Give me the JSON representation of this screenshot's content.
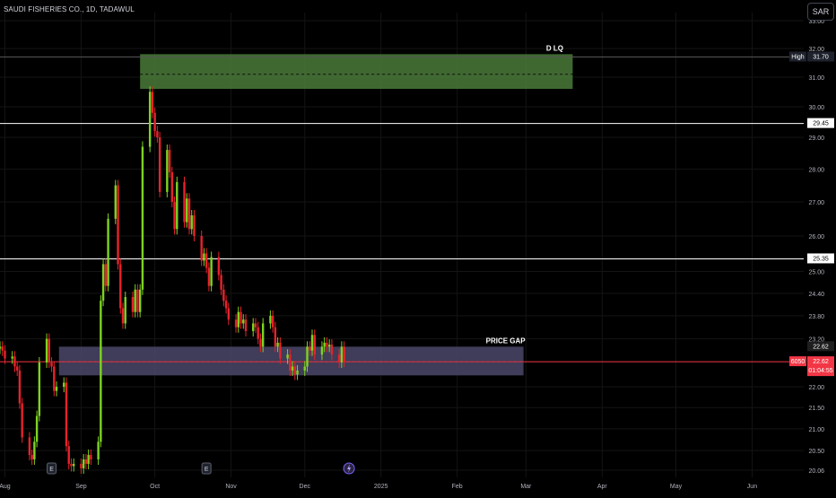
{
  "header": {
    "symbol_title": "SAUDI FISHERIES CO., 1D, TADAWUL",
    "currency": "SAR"
  },
  "colors": {
    "background": "#000000",
    "up": "#7ed321",
    "down": "#e8222b",
    "grid": "#141414",
    "axis_text": "#b2b5be",
    "price_line": "#f23645",
    "level_line": "#ffffff"
  },
  "chart_data": {
    "type": "candlestick",
    "symbol": "SAUDI FISHERIES CO.",
    "interval": "1D",
    "exchange": "TADAWUL",
    "y_axis": {
      "scale": "log",
      "range": [
        19.9,
        33.3
      ],
      "ticks": [
        "33.00",
        "32.00",
        "31.00",
        "30.00",
        "29.00",
        "28.00",
        "27.00",
        "26.00",
        "25.00",
        "24.40",
        "23.80",
        "23.20",
        "22.00",
        "21.50",
        "21.00",
        "20.50",
        "20.06"
      ]
    },
    "x_axis": {
      "range": [
        "2024-07-30",
        "2025-06-22"
      ],
      "ticks": [
        {
          "label": "Aug",
          "date": "2024-08-01"
        },
        {
          "label": "Sep",
          "date": "2024-09-01"
        },
        {
          "label": "Oct",
          "date": "2024-10-01"
        },
        {
          "label": "Nov",
          "date": "2024-11-01"
        },
        {
          "label": "Dec",
          "date": "2024-12-01"
        },
        {
          "label": "2025",
          "date": "2025-01-01"
        },
        {
          "label": "Feb",
          "date": "2025-02-01"
        },
        {
          "label": "Mar",
          "date": "2025-03-01"
        },
        {
          "label": "Apr",
          "date": "2025-04-01"
        },
        {
          "label": "May",
          "date": "2025-05-01"
        },
        {
          "label": "Jun",
          "date": "2025-06-01"
        }
      ]
    },
    "close_series": [
      [
        "2024-07-30",
        23.0
      ],
      [
        "2024-07-31",
        22.9
      ],
      [
        "2024-08-01",
        22.7
      ],
      [
        "2024-08-04",
        22.75
      ],
      [
        "2024-08-05",
        22.5
      ],
      [
        "2024-08-06",
        22.4
      ],
      [
        "2024-08-07",
        21.6
      ],
      [
        "2024-08-08",
        20.8
      ],
      [
        "2024-08-11",
        20.4
      ],
      [
        "2024-08-12",
        20.3
      ],
      [
        "2024-08-13",
        20.7
      ],
      [
        "2024-08-14",
        21.3
      ],
      [
        "2024-08-15",
        22.6
      ],
      [
        "2024-08-18",
        23.2
      ],
      [
        "2024-08-19",
        22.6
      ],
      [
        "2024-08-20",
        22.5
      ],
      [
        "2024-08-21",
        21.9
      ],
      [
        "2024-08-22",
        22.0
      ],
      [
        "2024-08-25",
        22.1
      ],
      [
        "2024-08-26",
        20.6
      ],
      [
        "2024-08-27",
        20.2
      ],
      [
        "2024-08-28",
        20.15
      ],
      [
        "2024-08-29",
        20.2
      ],
      [
        "2024-09-01",
        20.1
      ],
      [
        "2024-09-02",
        20.3
      ],
      [
        "2024-09-03",
        20.2
      ],
      [
        "2024-09-04",
        20.4
      ],
      [
        "2024-09-05",
        20.3
      ],
      [
        "2024-09-08",
        20.7
      ],
      [
        "2024-09-09",
        24.2
      ],
      [
        "2024-09-10",
        25.2
      ],
      [
        "2024-09-11",
        24.6
      ],
      [
        "2024-09-12",
        26.5
      ],
      [
        "2024-09-15",
        27.5
      ],
      [
        "2024-09-16",
        25.2
      ],
      [
        "2024-09-17",
        24.0
      ],
      [
        "2024-09-18",
        23.6
      ],
      [
        "2024-09-19",
        24.3
      ],
      [
        "2024-09-22",
        23.9
      ],
      [
        "2024-09-23",
        24.5
      ],
      [
        "2024-09-24",
        23.9
      ],
      [
        "2024-09-25",
        24.5
      ],
      [
        "2024-09-26",
        28.7
      ],
      [
        "2024-09-29",
        30.5
      ],
      [
        "2024-09-30",
        29.8
      ],
      [
        "2024-10-01",
        29.2
      ],
      [
        "2024-10-02",
        29.0
      ],
      [
        "2024-10-03",
        27.3
      ],
      [
        "2024-10-06",
        28.6
      ],
      [
        "2024-10-07",
        27.9
      ],
      [
        "2024-10-08",
        27.0
      ],
      [
        "2024-10-09",
        26.2
      ],
      [
        "2024-10-10",
        27.6
      ],
      [
        "2024-10-13",
        26.4
      ],
      [
        "2024-10-14",
        27.1
      ],
      [
        "2024-10-15",
        26.2
      ],
      [
        "2024-10-16",
        26.6
      ],
      [
        "2024-10-17",
        26.0
      ],
      [
        "2024-10-20",
        25.3
      ],
      [
        "2024-10-21",
        25.5
      ],
      [
        "2024-10-22",
        25.1
      ],
      [
        "2024-10-23",
        24.6
      ],
      [
        "2024-10-24",
        25.4
      ],
      [
        "2024-10-27",
        24.9
      ],
      [
        "2024-10-28",
        24.5
      ],
      [
        "2024-10-29",
        24.2
      ],
      [
        "2024-10-30",
        24.0
      ],
      [
        "2024-10-31",
        23.7
      ],
      [
        "2024-11-03",
        23.5
      ],
      [
        "2024-11-04",
        23.9
      ],
      [
        "2024-11-05",
        23.6
      ],
      [
        "2024-11-06",
        23.7
      ],
      [
        "2024-11-07",
        23.4
      ],
      [
        "2024-11-10",
        23.6
      ],
      [
        "2024-11-11",
        23.5
      ],
      [
        "2024-11-12",
        23.2
      ],
      [
        "2024-11-13",
        23.0
      ],
      [
        "2024-11-14",
        23.6
      ],
      [
        "2024-11-17",
        23.8
      ],
      [
        "2024-11-18",
        23.5
      ],
      [
        "2024-11-19",
        23.0
      ],
      [
        "2024-11-20",
        23.1
      ],
      [
        "2024-11-21",
        22.7
      ],
      [
        "2024-11-24",
        22.8
      ],
      [
        "2024-11-25",
        22.4
      ],
      [
        "2024-11-26",
        22.5
      ],
      [
        "2024-11-27",
        22.3
      ],
      [
        "2024-11-28",
        22.4
      ],
      [
        "2024-12-01",
        22.5
      ],
      [
        "2024-12-02",
        23.0
      ],
      [
        "2024-12-03",
        22.9
      ],
      [
        "2024-12-04",
        23.3
      ],
      [
        "2024-12-05",
        22.8
      ],
      [
        "2024-12-08",
        23.0
      ],
      [
        "2024-12-09",
        23.1
      ],
      [
        "2024-12-10",
        23.0
      ],
      [
        "2024-12-11",
        23.05
      ],
      [
        "2024-12-12",
        22.8
      ],
      [
        "2024-12-15",
        22.6
      ],
      [
        "2024-12-16",
        23.0
      ],
      [
        "2024-12-17",
        22.62
      ]
    ],
    "annotations": [
      {
        "type": "zone",
        "label": "D LQ",
        "color": "#4a7a3a",
        "from": "2024-09-25",
        "to": "2025-03-20",
        "low": 30.6,
        "high": 31.8,
        "mid": 31.1
      },
      {
        "type": "zone",
        "label": "PRICE GAP",
        "color": "#4a4868",
        "from": "2024-08-23",
        "to": "2025-02-28",
        "low": 22.28,
        "high": 23.0,
        "mid": 22.62
      },
      {
        "type": "hline",
        "value": 31.7,
        "color": "#555555",
        "label": "High",
        "price_label": "31.70"
      },
      {
        "type": "hline",
        "value": 29.45,
        "color": "#ffffff",
        "price_label": "29.45"
      },
      {
        "type": "hline",
        "value": 25.35,
        "color": "#ffffff",
        "price_label": "25.35"
      },
      {
        "type": "hline",
        "value": 22.62,
        "color": "#f23645",
        "price_label": "22.62",
        "code": "6050",
        "countdown": "01:04:55"
      }
    ],
    "event_markers": [
      {
        "date": "2024-08-20",
        "icon": "E"
      },
      {
        "date": "2024-10-22",
        "icon": "E"
      },
      {
        "date": "2024-12-19",
        "icon": "lightning-icon"
      }
    ],
    "last_price_label": "22.62"
  }
}
